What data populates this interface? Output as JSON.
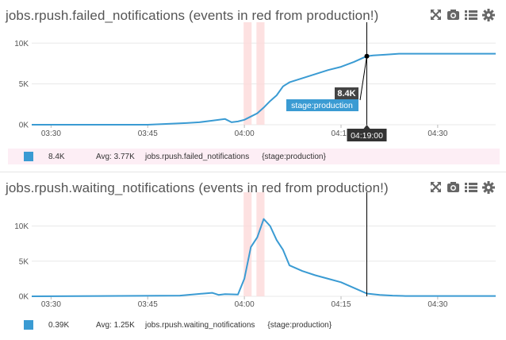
{
  "colors": {
    "series": "#3a9bd3",
    "event_band": "#fdd9d9",
    "cursor": "#000000",
    "legend_highlight": "#fdeef5",
    "tooltip_label_bg": "#3a9bd3",
    "tooltip_value_bg": "#444444"
  },
  "toolbar_icons": [
    "expand-icon",
    "camera-icon",
    "list-icon",
    "gear-icon"
  ],
  "panels": [
    {
      "title": "jobs.rpush.failed_notifications (events in red from production!)",
      "legend": {
        "value": "8.4K",
        "avg": "Avg: 3.77K",
        "metric": "jobs.rpush.failed_notifications",
        "tag": "{stage:production}"
      },
      "tooltip": {
        "value": "8.4K",
        "label": "stage:production",
        "time": "04:19:00"
      },
      "chart_data": {
        "type": "line",
        "title": "jobs.rpush.failed_notifications (events in red from production!)",
        "x_ticks": [
          "03:30",
          "03:45",
          "04:00",
          "04:15",
          "04:30"
        ],
        "y_ticks": [
          "0K",
          "5K",
          "10K"
        ],
        "ylim": [
          0,
          11000
        ],
        "grid": true,
        "series": [
          {
            "name": "stage:production",
            "x": [
              "03:27",
              "03:45",
              "03:51",
              "03:53",
              "03:55",
              "03:57",
              "03:58",
              "03:59",
              "04:00",
              "04:01",
              "04:02",
              "04:03",
              "04:04",
              "04:05",
              "04:06",
              "04:07",
              "04:09",
              "04:11",
              "04:13",
              "04:15",
              "04:17",
              "04:19",
              "04:20",
              "04:22",
              "04:24",
              "04:26",
              "04:28",
              "04:30",
              "04:39"
            ],
            "values": [
              0,
              0,
              200,
              300,
              500,
              700,
              300,
              400,
              600,
              1000,
              1400,
              2100,
              2900,
              3600,
              4700,
              5200,
              5700,
              6200,
              6700,
              7100,
              7700,
              8400,
              8500,
              8600,
              8700,
              8700,
              8700,
              8700,
              8700
            ]
          }
        ],
        "events": [
          [
            "04:00",
            "04:01"
          ],
          [
            "04:02",
            "04:03"
          ]
        ],
        "cursor_time": "04:19"
      }
    },
    {
      "title": "jobs.rpush.waiting_notifications (events in red from production!)",
      "legend": {
        "value": "0.39K",
        "avg": "Avg: 1.25K",
        "metric": "jobs.rpush.waiting_notifications",
        "tag": "{stage:production}"
      },
      "chart_data": {
        "type": "line",
        "title": "jobs.rpush.waiting_notifications (events in red from production!)",
        "x_ticks": [
          "03:30",
          "03:45",
          "04:00",
          "04:15",
          "04:30"
        ],
        "y_ticks": [
          "0K",
          "5K",
          "10K"
        ],
        "ylim": [
          0,
          13000
        ],
        "grid": true,
        "series": [
          {
            "name": "stage:production",
            "x": [
              "03:27",
              "03:50",
              "03:55",
              "03:56",
              "03:57",
              "03:59",
              "04:00",
              "04:01",
              "04:02",
              "04:03",
              "04:04",
              "04:05",
              "04:06",
              "04:07",
              "04:09",
              "04:11",
              "04:13",
              "04:15",
              "04:17",
              "04:19",
              "04:21",
              "04:23",
              "04:25",
              "04:39"
            ],
            "values": [
              0,
              100,
              500,
              200,
              300,
              250,
              2500,
              7000,
              8400,
              11000,
              10000,
              8000,
              6600,
              4400,
              3600,
              3000,
              2500,
              2000,
              1200,
              400,
              200,
              100,
              50,
              50
            ]
          }
        ],
        "events": [
          [
            "04:00",
            "04:01"
          ],
          [
            "04:02",
            "04:03"
          ]
        ],
        "cursor_time": "04:19"
      }
    }
  ]
}
